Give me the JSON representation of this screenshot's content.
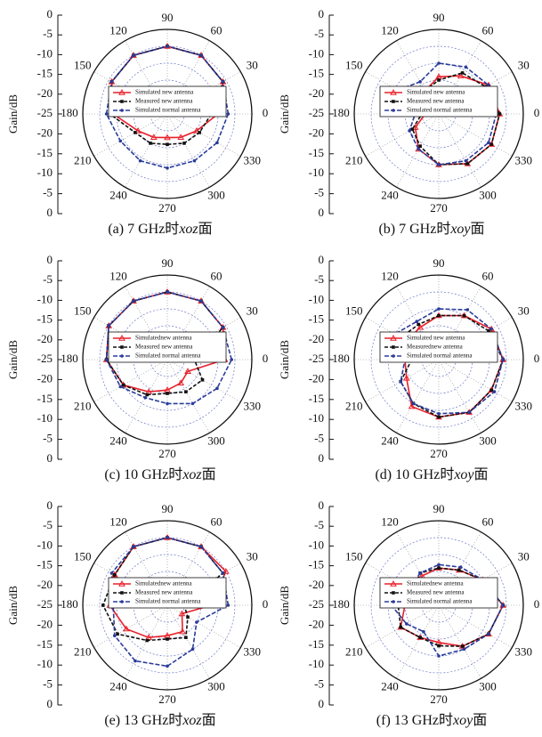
{
  "chart_data": [
    {
      "type": "polar",
      "caption": {
        "prefix": "(a) 7 GHz时",
        "plane": "xoz",
        "suffix": "面"
      },
      "ylabel": "Gain/dB",
      "rlim": [
        -25,
        0
      ],
      "rticks": [
        -25,
        -20,
        -15,
        -10,
        -5,
        0
      ],
      "thetaticks": [
        0,
        30,
        60,
        90,
        120,
        150,
        180,
        210,
        240,
        270,
        300,
        330
      ],
      "grid": true,
      "legend": "center",
      "theta": [
        0,
        30,
        60,
        90,
        120,
        150,
        180,
        210,
        240,
        270,
        300,
        330
      ],
      "series": [
        {
          "name": "Simulated  new antenna",
          "color": "#e8202a",
          "values": [
            -10,
            -6,
            -5,
            -5,
            -5,
            -6,
            -9,
            -15,
            -17,
            -18,
            -17,
            -15
          ]
        },
        {
          "name": "Measured  new antenna",
          "color": "#111111",
          "values": [
            -12,
            -6,
            -5,
            -5,
            -5,
            -6,
            -8,
            -14,
            -15,
            -16,
            -15,
            -14
          ]
        },
        {
          "name": "Simulated  normal antenna",
          "color": "#2a3c9a",
          "values": [
            -7,
            -6,
            -5,
            -5,
            -5,
            -6,
            -7,
            -9,
            -9,
            -9,
            -9,
            -8
          ]
        }
      ]
    },
    {
      "type": "polar",
      "caption": {
        "prefix": "(b) 7 GHz时",
        "plane": "xoy",
        "suffix": "面"
      },
      "ylabel": "Gain/dB",
      "rlim": [
        -25,
        0
      ],
      "rticks": [
        -25,
        -20,
        -15,
        -10,
        -5,
        0
      ],
      "thetaticks": [
        0,
        30,
        60,
        90,
        120,
        150,
        180,
        210,
        240,
        270,
        300,
        330
      ],
      "grid": true,
      "legend": "center",
      "theta": [
        0,
        30,
        60,
        90,
        120,
        150,
        180,
        210,
        240,
        270,
        300,
        330
      ],
      "series": [
        {
          "name": "Simulated  new antenna",
          "color": "#e8202a",
          "values": [
            -7,
            -8,
            -12,
            -14,
            -17,
            -19,
            -21,
            -17,
            -13,
            -10,
            -8,
            -7
          ]
        },
        {
          "name": "Measured  new antenna",
          "color": "#111111",
          "values": [
            -7,
            -9,
            -11,
            -15,
            -17,
            -18,
            -20,
            -16,
            -14,
            -10,
            -8,
            -7
          ]
        },
        {
          "name": "Simulated  normal antenna",
          "color": "#2a3c9a",
          "values": [
            -8,
            -8,
            -9,
            -10,
            -14,
            -11,
            -18,
            -15,
            -13,
            -10,
            -9,
            -8
          ]
        }
      ]
    },
    {
      "type": "polar",
      "caption": {
        "prefix": "(c) 10 GHz时",
        "plane": "xoz",
        "suffix": "面"
      },
      "ylabel": "Gain/dB",
      "rlim": [
        -25,
        0
      ],
      "rticks": [
        -25,
        -20,
        -15,
        -10,
        -5,
        0
      ],
      "thetaticks": [
        0,
        30,
        60,
        90,
        120,
        150,
        180,
        210,
        240,
        270,
        300,
        330
      ],
      "grid": true,
      "legend": "center",
      "theta": [
        0,
        30,
        60,
        90,
        120,
        150,
        180,
        210,
        240,
        270,
        300,
        330
      ],
      "series": [
        {
          "name": "Simulatednew antenna",
          "color": "#e8202a",
          "values": [
            -8,
            -6,
            -5,
            -5,
            -5,
            -5,
            -7,
            -10,
            -14,
            -16,
            -17,
            -18
          ]
        },
        {
          "name": "Measured  new antenna",
          "color": "#111111",
          "values": [
            -17,
            -6,
            -5,
            -5,
            -5,
            -5,
            -7,
            -10,
            -13,
            -15,
            -14,
            -13
          ]
        },
        {
          "name": "Simulated  normal antenna",
          "color": "#2a3c9a",
          "values": [
            -6,
            -6,
            -5,
            -5,
            -5,
            -5,
            -7,
            -9,
            -12,
            -12,
            -10,
            -8
          ]
        }
      ]
    },
    {
      "type": "polar",
      "caption": {
        "prefix": "(d) 10 GHz时",
        "plane": "xoy",
        "suffix": "面"
      },
      "ylabel": "Gain/dB",
      "rlim": [
        -25,
        0
      ],
      "rticks": [
        -25,
        -20,
        -15,
        -10,
        -5,
        0
      ],
      "thetaticks": [
        0,
        30,
        60,
        90,
        120,
        150,
        180,
        210,
        240,
        270,
        300,
        330
      ],
      "grid": true,
      "legend": "center",
      "theta": [
        0,
        30,
        60,
        90,
        120,
        150,
        180,
        210,
        240,
        270,
        300,
        330
      ],
      "series": [
        {
          "name": "Simulated  new antenna",
          "color": "#e8202a",
          "values": [
            -6,
            -7,
            -10,
            -12,
            -14,
            -14,
            -15,
            -14,
            -9,
            -8,
            -7,
            -7
          ]
        },
        {
          "name": "Measurednew antenna",
          "color": "#111111",
          "values": [
            -6,
            -8,
            -10,
            -12,
            -13,
            -12,
            -17,
            -12,
            -10,
            -8,
            -7,
            -7
          ]
        },
        {
          "name": "Simulated  normal antenna",
          "color": "#2a3c9a",
          "values": [
            -6,
            -7,
            -8,
            -10,
            -12,
            -10,
            -15,
            -12,
            -10,
            -9,
            -7,
            -6
          ]
        }
      ]
    },
    {
      "type": "polar",
      "caption": {
        "prefix": "(e) 13 GHz时",
        "plane": "xoz",
        "suffix": "面"
      },
      "ylabel": "Gain/dB",
      "rlim": [
        -25,
        0
      ],
      "rticks": [
        -25,
        -20,
        -15,
        -10,
        -5,
        0
      ],
      "thetaticks": [
        0,
        30,
        60,
        90,
        120,
        150,
        180,
        210,
        240,
        270,
        300,
        330
      ],
      "grid": true,
      "legend": "center",
      "theta": [
        0,
        30,
        60,
        90,
        120,
        150,
        180,
        210,
        240,
        270,
        300,
        330
      ],
      "series": [
        {
          "name": "Simulatednew  antenna",
          "color": "#e8202a",
          "values": [
            -12,
            -5,
            -5,
            -5,
            -5,
            -7,
            -8,
            -11,
            -14,
            -16,
            -16,
            -20
          ]
        },
        {
          "name": "Measured new antenna",
          "color": "#111111",
          "values": [
            -20,
            -6,
            -5,
            -5,
            -5,
            -7,
            -6,
            -8,
            -13,
            -15,
            -14,
            -18
          ]
        },
        {
          "name": "Simulated  normal antenna",
          "color": "#2a3c9a",
          "values": [
            -7,
            -6,
            -5,
            -5,
            -5,
            -6,
            -9,
            -7,
            -6,
            -7,
            -10,
            -15
          ]
        }
      ]
    },
    {
      "type": "polar",
      "caption": {
        "prefix": "(f) 13 GHz时",
        "plane": "xoy",
        "suffix": "面"
      },
      "ylabel": "Gain/dB",
      "rlim": [
        -25,
        0
      ],
      "rticks": [
        -25,
        -20,
        -15,
        -10,
        -5,
        0
      ],
      "thetaticks": [
        0,
        30,
        60,
        90,
        120,
        150,
        180,
        210,
        240,
        270,
        300,
        330
      ],
      "grid": true,
      "legend": "center",
      "theta": [
        0,
        30,
        60,
        90,
        120,
        150,
        180,
        210,
        240,
        270,
        300,
        330
      ],
      "series": [
        {
          "name": "Simulatednew  antenna",
          "color": "#e8202a",
          "values": [
            -6,
            -10,
            -13,
            -14,
            -15,
            -19,
            -15,
            -12,
            -14,
            -14,
            -11,
            -8
          ]
        },
        {
          "name": "Measured new antenna",
          "color": "#111111",
          "values": [
            -6,
            -10,
            -13,
            -14,
            -14,
            -16,
            -13,
            -12,
            -14,
            -13,
            -11,
            -8
          ]
        },
        {
          "name": "Simulated  normal antenna",
          "color": "#2a3c9a",
          "values": [
            -6,
            -10,
            -12,
            -13,
            -14,
            -15,
            -11,
            -14,
            -16,
            -10,
            -10,
            -8
          ]
        }
      ]
    }
  ]
}
